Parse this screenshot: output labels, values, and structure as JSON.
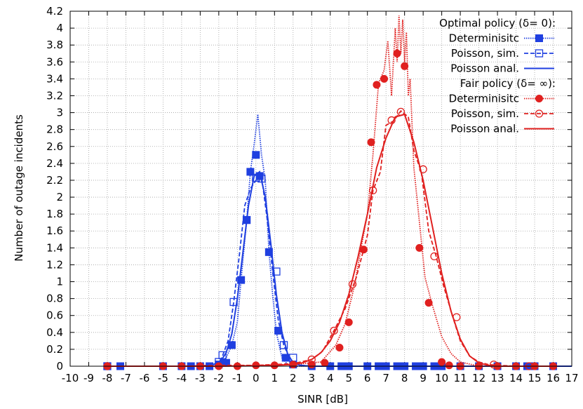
{
  "chart_data": {
    "type": "line",
    "xlabel": "SINR [dB]",
    "ylabel": "Number of outage incidents",
    "xlim": [
      -10,
      17
    ],
    "ylim": [
      0,
      4.2
    ],
    "x_ticks": [
      -10,
      -9,
      -8,
      -7,
      -6,
      -5,
      -4,
      -3,
      -2,
      -1,
      0,
      1,
      2,
      3,
      4,
      5,
      6,
      7,
      8,
      9,
      10,
      11,
      12,
      13,
      14,
      15,
      16,
      17
    ],
    "y_ticks": [
      0,
      0.2,
      0.4,
      0.6,
      0.8,
      1,
      1.2,
      1.4,
      1.6,
      1.8,
      2,
      2.2,
      2.4,
      2.6,
      2.8,
      3,
      3.2,
      3.4,
      3.6,
      3.8,
      4,
      4.2
    ],
    "grid": true,
    "legend_position": "top-right",
    "legend_groups": [
      {
        "title": "Optimal policy (δ= 0):",
        "entries": [
          "Determinisitc",
          "Poisson, sim.",
          "Poisson anal."
        ]
      },
      {
        "title": "Fair policy (δ= ∞):",
        "entries": [
          "Determinisitc",
          "Poisson, sim.",
          "Poisson anal."
        ]
      }
    ],
    "series": [
      {
        "name": "Determinisitc",
        "group": "Optimal policy (δ= 0)",
        "color": "#1f3fe0",
        "line": "dotted",
        "marker": "filled-square",
        "x": [
          -8,
          -7.3,
          -5,
          -4,
          -3.5,
          -3,
          -2.5,
          -2,
          -1.6,
          -1.3,
          -1,
          -0.8,
          -0.5,
          -0.3,
          -0.1,
          0.1,
          0.3,
          0.5,
          0.7,
          0.9,
          1.1,
          1.4,
          1.7,
          2.0,
          3.0,
          4.0,
          5.0,
          6.0,
          7.0,
          8.0,
          9.0,
          10.0,
          11.0,
          12.0,
          13.0,
          14.0,
          15.0,
          16.0
        ],
        "y": [
          0,
          0,
          0,
          0,
          0,
          0,
          0,
          0.02,
          0.1,
          0.25,
          0.52,
          1.02,
          1.72,
          2.3,
          2.62,
          2.98,
          2.5,
          2.2,
          1.35,
          0.85,
          0.4,
          0.1,
          0.02,
          0,
          0,
          0,
          0,
          0,
          0,
          0,
          0,
          0,
          0,
          0,
          0,
          0,
          0,
          0
        ],
        "marker_x": [
          -8,
          -7.3,
          -5,
          -4,
          -3.5,
          -3,
          -2.5,
          -2,
          -1.6,
          -1.3,
          -0.8,
          -0.5,
          -0.3,
          0.0,
          0.2,
          0.7,
          1.2,
          1.6,
          2.0,
          3.0,
          4.0,
          4.6,
          5.0,
          6.0,
          6.6,
          7.0,
          7.6,
          8.0,
          8.6,
          9.0,
          9.6,
          10.0,
          11.0,
          12.0,
          13.0,
          14.0,
          14.6,
          15.0,
          16.0
        ],
        "marker_y": [
          0,
          0,
          0,
          0,
          0,
          0,
          0,
          0.02,
          0.04,
          0.25,
          1.02,
          1.73,
          2.3,
          2.5,
          2.25,
          1.35,
          0.42,
          0.1,
          0.02,
          0,
          0,
          0,
          0,
          0,
          0,
          0,
          0,
          0,
          0,
          0,
          0,
          0,
          0,
          0,
          0,
          0,
          0,
          0,
          0
        ]
      },
      {
        "name": "Poisson, sim.",
        "group": "Optimal policy (δ= 0)",
        "color": "#1f3fe0",
        "line": "dashed",
        "marker": "open-square",
        "x": [
          -8,
          -5,
          -3,
          -2.5,
          -2,
          -1.8,
          -1.5,
          -1.2,
          -0.9,
          -0.6,
          -0.3,
          0.0,
          0.3,
          0.6,
          0.9,
          1.2,
          1.5,
          1.8,
          2.1,
          2.5,
          3.0,
          5,
          8,
          11,
          14,
          16
        ],
        "y": [
          0,
          0,
          0,
          0.01,
          0.04,
          0.12,
          0.3,
          0.75,
          1.3,
          1.9,
          2.1,
          2.2,
          2.25,
          1.75,
          1.12,
          0.55,
          0.25,
          0.1,
          0.03,
          0.01,
          0,
          0,
          0,
          0,
          0,
          0
        ],
        "marker_x": [
          -8,
          -2.0,
          -1.8,
          -1.2,
          -0.5,
          0.0,
          0.3,
          1.1,
          1.5,
          2.0
        ],
        "marker_y": [
          0,
          0.05,
          0.13,
          0.76,
          1.73,
          2.23,
          2.22,
          1.12,
          0.25,
          0.1
        ]
      },
      {
        "name": "Poisson anal.",
        "group": "Optimal policy (δ= 0)",
        "color": "#1f3fe0",
        "line": "solid",
        "marker": "none",
        "x": [
          -8,
          -4,
          -2.8,
          -2.3,
          -1.9,
          -1.6,
          -1.3,
          -1.0,
          -0.7,
          -0.4,
          -0.1,
          0.2,
          0.5,
          0.8,
          1.1,
          1.4,
          1.7,
          2.0,
          2.4,
          3.0,
          5,
          8,
          11,
          14,
          17
        ],
        "y": [
          0,
          0,
          0.005,
          0.02,
          0.06,
          0.16,
          0.38,
          0.8,
          1.35,
          1.9,
          2.25,
          2.3,
          2.0,
          1.45,
          0.85,
          0.4,
          0.15,
          0.04,
          0.01,
          0,
          0,
          0,
          0,
          0,
          0
        ]
      },
      {
        "name": "Determinisitc",
        "group": "Fair policy (δ= ∞)",
        "color": "#e0201f",
        "line": "dotted",
        "marker": "filled-circle",
        "x": [
          -8,
          -4,
          -2,
          0,
          2,
          3.5,
          4.3,
          4.8,
          5.3,
          5.7,
          6.0,
          6.3,
          6.6,
          6.9,
          7.1,
          7.3,
          7.5,
          7.6,
          7.7,
          7.8,
          7.9,
          8.0,
          8.1,
          8.2,
          8.3,
          8.5,
          8.8,
          9.1,
          9.5,
          10.0,
          10.5,
          11.0,
          12.0,
          14.0,
          16.0
        ],
        "y": [
          0,
          0,
          0,
          0.01,
          0.02,
          0.05,
          0.25,
          0.5,
          0.95,
          1.45,
          1.8,
          2.5,
          3.35,
          3.5,
          3.85,
          3.2,
          4.0,
          3.6,
          4.15,
          3.7,
          4.1,
          3.6,
          3.95,
          3.2,
          3.4,
          2.35,
          1.7,
          1.05,
          0.72,
          0.35,
          0.15,
          0.05,
          0,
          0,
          0
        ],
        "marker_x": [
          -8,
          -5,
          -4,
          -3,
          -2,
          -1,
          0,
          1,
          2,
          3,
          3.7,
          4.5,
          5.0,
          5.8,
          6.2,
          6.5,
          6.9,
          7.6,
          8.0,
          8.8,
          9.3,
          10.0,
          10.4,
          11.0,
          12.0,
          13.0,
          14.0,
          15.0,
          16.0
        ],
        "marker_y": [
          0,
          0,
          0,
          0,
          0,
          0,
          0.01,
          0.01,
          0.02,
          0.02,
          0.04,
          0.22,
          0.52,
          1.38,
          2.65,
          3.33,
          3.4,
          3.7,
          3.55,
          1.4,
          0.75,
          0.05,
          0.01,
          0,
          0,
          0,
          0,
          0,
          0
        ]
      },
      {
        "name": "Poisson, sim.",
        "group": "Fair policy (δ= ∞)",
        "color": "#e0201f",
        "line": "dashed",
        "marker": "open-circle",
        "x": [
          -8,
          -4,
          -2,
          0,
          1,
          2,
          3.0,
          3.6,
          4.2,
          4.8,
          5.4,
          6.0,
          6.3,
          6.7,
          7.0,
          7.4,
          7.8,
          8.2,
          8.5,
          8.9,
          9.3,
          9.7,
          10.1,
          10.6,
          11.0,
          11.5,
          12.0,
          12.5,
          13.0,
          14.0,
          15.0,
          16.0
        ],
        "y": [
          0,
          0,
          0.01,
          0.01,
          0.02,
          0.03,
          0.08,
          0.18,
          0.42,
          0.68,
          1.05,
          1.55,
          2.08,
          2.3,
          2.85,
          2.9,
          3.02,
          2.95,
          2.55,
          2.3,
          1.6,
          1.3,
          0.95,
          0.58,
          0.3,
          0.12,
          0.05,
          0.02,
          0.01,
          0,
          0,
          0
        ],
        "marker_x": [
          -8,
          3.0,
          4.2,
          5.2,
          6.3,
          7.3,
          7.8,
          9.0,
          9.6,
          10.8,
          12.8,
          14.7
        ],
        "marker_y": [
          0,
          0.08,
          0.42,
          0.97,
          2.08,
          2.91,
          3.01,
          2.33,
          1.3,
          0.58,
          0.02,
          0
        ]
      },
      {
        "name": "Poisson anal.",
        "group": "Fair policy (δ= ∞)",
        "color": "#e0201f",
        "line": "solid",
        "marker": "none",
        "x": [
          -8,
          -2,
          0,
          1,
          2,
          2.5,
          3.0,
          3.5,
          4.0,
          4.5,
          5.0,
          5.5,
          6.0,
          6.5,
          7.0,
          7.5,
          8.0,
          8.5,
          9.0,
          9.5,
          10.0,
          10.5,
          11.0,
          11.5,
          12.0,
          12.5,
          13.0,
          14.0,
          15.0,
          16.0
        ],
        "y": [
          0,
          0,
          0.005,
          0.01,
          0.02,
          0.04,
          0.08,
          0.16,
          0.3,
          0.52,
          0.85,
          1.3,
          1.8,
          2.35,
          2.7,
          2.95,
          2.98,
          2.65,
          2.2,
          1.65,
          1.1,
          0.65,
          0.32,
          0.12,
          0.04,
          0.01,
          0,
          0,
          0,
          0
        ]
      }
    ]
  }
}
